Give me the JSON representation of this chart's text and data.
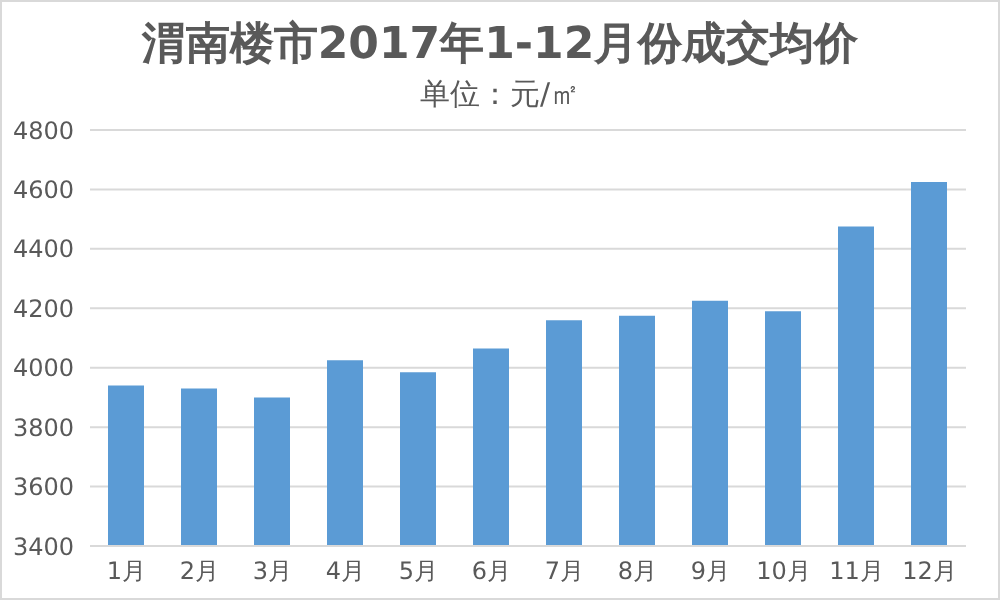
{
  "chart_data": {
    "type": "bar",
    "title": "渭南楼市2017年1-12月份成交均价",
    "subtitle": "单位：元/㎡",
    "categories": [
      "1月",
      "2月",
      "3月",
      "4月",
      "5月",
      "6月",
      "7月",
      "8月",
      "9月",
      "10月",
      "11月",
      "12月"
    ],
    "values": [
      3940,
      3930,
      3900,
      4025,
      3985,
      4065,
      4160,
      4175,
      4225,
      4190,
      4475,
      4625
    ],
    "color": "#5b9bd5",
    "ylim": [
      3400,
      4800
    ],
    "yticks": [
      3400,
      3600,
      3800,
      4000,
      4200,
      4400,
      4600,
      4800
    ],
    "grid": "y"
  }
}
